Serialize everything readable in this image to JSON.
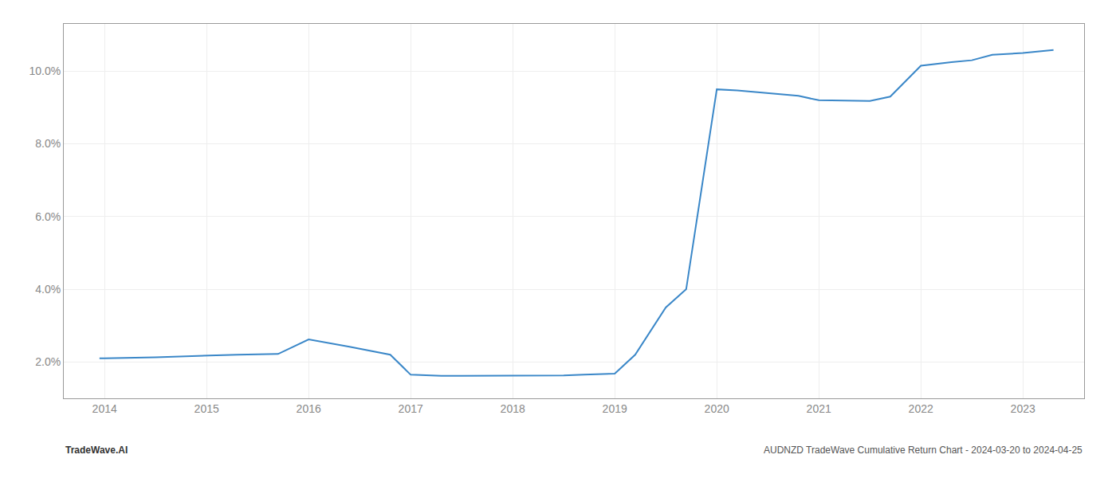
{
  "chart_data": {
    "type": "line",
    "x": [
      2013.95,
      2014.0,
      2014.5,
      2015.0,
      2015.3,
      2015.7,
      2016.0,
      2016.4,
      2016.8,
      2017.0,
      2017.3,
      2017.5,
      2018.0,
      2018.3,
      2018.5,
      2018.7,
      2019.0,
      2019.2,
      2019.5,
      2019.7,
      2020.0,
      2020.2,
      2020.5,
      2020.8,
      2021.0,
      2021.3,
      2021.5,
      2021.7,
      2022.0,
      2022.3,
      2022.5,
      2022.7,
      2023.0,
      2023.3
    ],
    "values": [
      2.1,
      2.1,
      2.13,
      2.18,
      2.2,
      2.22,
      2.62,
      2.42,
      2.2,
      1.65,
      1.62,
      1.62,
      1.62,
      1.63,
      1.63,
      1.65,
      1.68,
      2.2,
      3.5,
      4.0,
      9.5,
      9.47,
      9.4,
      9.32,
      9.2,
      9.18,
      9.18,
      9.3,
      10.15,
      10.25,
      10.3,
      10.45,
      10.5,
      10.58
    ],
    "color": "#3a87c8",
    "xlim": [
      2013.6,
      2023.6
    ],
    "ylim": [
      1.0,
      11.3
    ],
    "xticks": [
      2014,
      2015,
      2016,
      2017,
      2018,
      2019,
      2020,
      2021,
      2022,
      2023
    ],
    "yticks": [
      {
        "value": 2.0,
        "label": "2.0%"
      },
      {
        "value": 4.0,
        "label": "4.0%"
      },
      {
        "value": 6.0,
        "label": "6.0%"
      },
      {
        "value": 8.0,
        "label": "8.0%"
      },
      {
        "value": 10.0,
        "label": "10.0%"
      }
    ],
    "grid": true,
    "annotations": [
      "TradeWave.AI",
      "AUDNZD TradeWave Cumulative Return Chart - 2024-03-20 to 2024-04-25"
    ]
  }
}
